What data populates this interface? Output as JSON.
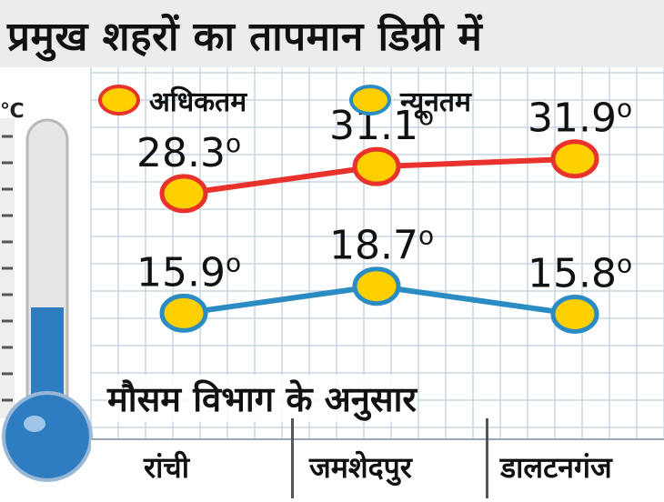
{
  "title": "प्रमुख शहरों का तापमान डिग्री में",
  "unit_symbol": "℃",
  "source_note": "मौसम विभाग के अनुसार",
  "colors": {
    "max_line": "#e8322b",
    "min_line": "#2b8cc4",
    "max_marker_fill": "#ffd000",
    "max_marker_stroke": "#e8322b",
    "min_marker_fill": "#ffd000",
    "min_marker_stroke": "#2b8cc4",
    "thermometer_fill": "#2f7dc1",
    "grid": "#c9d6e3"
  },
  "legend": [
    {
      "label": "अधिकतम",
      "icon": "orange-circle-icon"
    },
    {
      "label": "न्यूनतम",
      "icon": "teal-circle-icon"
    }
  ],
  "chart_data": {
    "type": "line",
    "title": "प्रमुख शहरों का तापमान डिग्री में",
    "categories": [
      "रांची",
      "जमशेदपुर",
      "डालटनगंज"
    ],
    "series": [
      {
        "name": "अधिकतम",
        "values": [
          28.3,
          31.1,
          31.9
        ],
        "labels": [
          "28.3",
          "31.1",
          "31.9"
        ]
      },
      {
        "name": "न्यूनतम",
        "values": [
          15.9,
          18.7,
          15.8
        ],
        "labels": [
          "15.9",
          "18.7",
          "15.8"
        ]
      }
    ],
    "degree_suffix": "o",
    "ylim": [
      5,
      38
    ],
    "grid": true,
    "legend_position": "top"
  }
}
